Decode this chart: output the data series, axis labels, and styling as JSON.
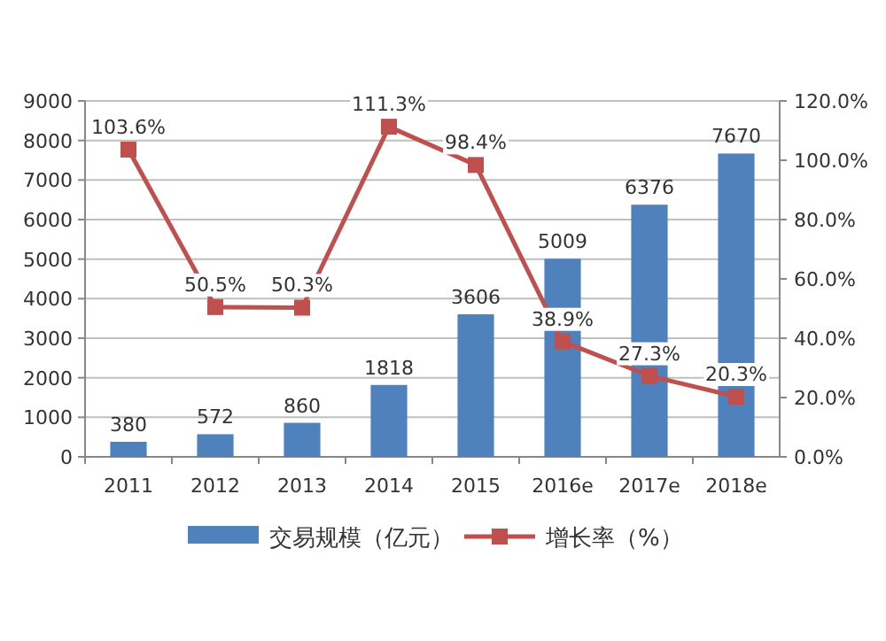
{
  "chart_data": {
    "type": "bar",
    "categories": [
      "2011",
      "2012",
      "2013",
      "2014",
      "2015",
      "2016e",
      "2017e",
      "2018e"
    ],
    "series": [
      {
        "name": "交易规模（亿元）",
        "color": "#4f81bd",
        "values": [
          380,
          572,
          860,
          1818,
          3606,
          5009,
          6376,
          7670
        ],
        "value_labels": [
          "380",
          "572",
          "860",
          "1818",
          "3606",
          "5009",
          "6376",
          "7670"
        ]
      },
      {
        "name": "增长率（%）",
        "type": "line",
        "axis": "y2",
        "color": "#c0504d",
        "marker": "square",
        "values": [
          103.6,
          50.5,
          50.3,
          111.3,
          98.4,
          38.9,
          27.3,
          20.3
        ],
        "value_labels": [
          "103.6%",
          "50.5%",
          "50.3%",
          "111.3%",
          "98.4%",
          "38.9%",
          "27.3%",
          "20.3%"
        ]
      }
    ],
    "ylim": [
      0,
      9000
    ],
    "yticks": [
      0,
      1000,
      2000,
      3000,
      4000,
      5000,
      6000,
      7000,
      8000,
      9000
    ],
    "y2lim": [
      0,
      120
    ],
    "y2ticks": [
      {
        "value": 0,
        "label": "0.0%"
      },
      {
        "value": 20,
        "label": "20.0%"
      },
      {
        "value": 40,
        "label": "40.0%"
      },
      {
        "value": 60,
        "label": "60.0%"
      },
      {
        "value": 80,
        "label": "80.0%"
      },
      {
        "value": 100,
        "label": "100.0%"
      },
      {
        "value": 120,
        "label": "120.0%"
      }
    ],
    "grid": "y",
    "legend": "bottom"
  }
}
